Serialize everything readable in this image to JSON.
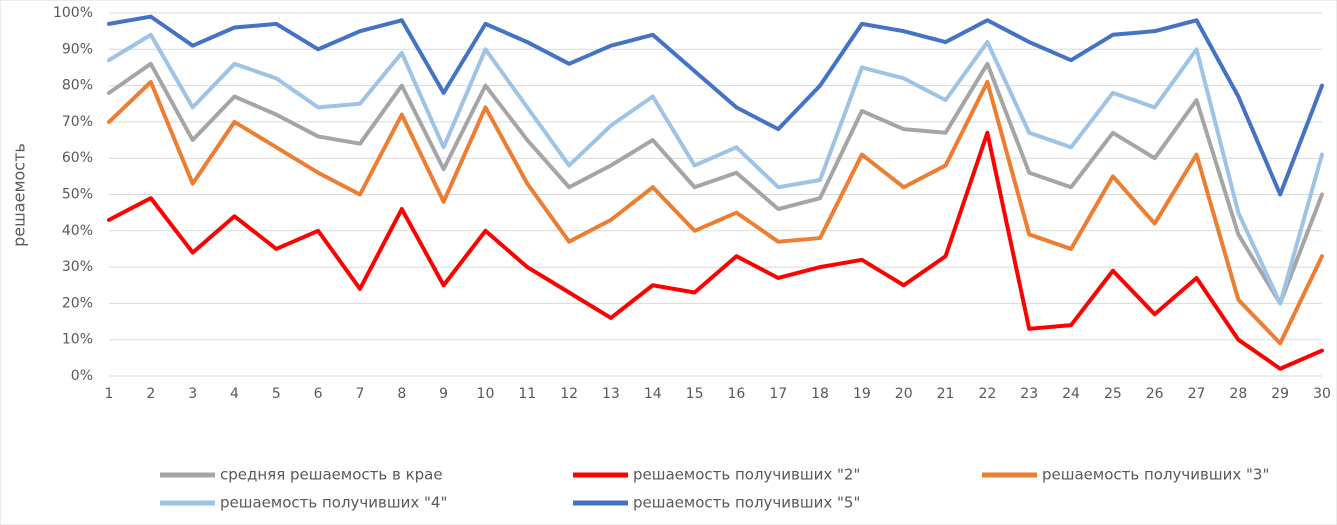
{
  "chart_data": {
    "type": "line",
    "y_label": "решаемость",
    "categories": [
      "1",
      "2",
      "3",
      "4",
      "5",
      "6",
      "7",
      "8",
      "9",
      "10",
      "11",
      "12",
      "13",
      "14",
      "15",
      "16",
      "17",
      "18",
      "19",
      "20",
      "21",
      "22",
      "23",
      "24",
      "25",
      "26",
      "27",
      "28",
      "29",
      "30"
    ],
    "ylim": [
      0,
      100
    ],
    "yticks": [
      {
        "value": 0,
        "label": "0%"
      },
      {
        "value": 10,
        "label": "10%"
      },
      {
        "value": 20,
        "label": "20%"
      },
      {
        "value": 30,
        "label": "30%"
      },
      {
        "value": 40,
        "label": "40%"
      },
      {
        "value": 50,
        "label": "50%"
      },
      {
        "value": 60,
        "label": "60%"
      },
      {
        "value": 70,
        "label": "70%"
      },
      {
        "value": 80,
        "label": "80%"
      },
      {
        "value": 90,
        "label": "90%"
      },
      {
        "value": 100,
        "label": "100%"
      }
    ],
    "grid": true,
    "legend": "bottom",
    "series": [
      {
        "name": "средняя решаемость в крае",
        "color": "#a5a5a5",
        "values": [
          78,
          86,
          65,
          77,
          72,
          66,
          64,
          80,
          57,
          80,
          65,
          52,
          58,
          65,
          52,
          56,
          46,
          49,
          73,
          68,
          67,
          86,
          56,
          52,
          67,
          60,
          76,
          39,
          20,
          50
        ]
      },
      {
        "name": "решаемость получивших \"2\"",
        "color": "#ff0000",
        "values": [
          43,
          49,
          34,
          44,
          35,
          40,
          24,
          46,
          25,
          40,
          30,
          23,
          16,
          25,
          23,
          33,
          27,
          30,
          32,
          25,
          33,
          67,
          13,
          14,
          29,
          17,
          27,
          10,
          2,
          7
        ]
      },
      {
        "name": "решаемость получивших \"3\"",
        "color": "#ed7d31",
        "values": [
          70,
          81,
          53,
          70,
          63,
          56,
          50,
          72,
          48,
          74,
          53,
          37,
          43,
          52,
          40,
          45,
          37,
          38,
          61,
          52,
          58,
          81,
          39,
          35,
          55,
          42,
          61,
          21,
          9,
          33
        ]
      },
      {
        "name": "решаемость получивших \"4\"",
        "color": "#9dc3e6",
        "values": [
          87,
          94,
          74,
          86,
          82,
          74,
          75,
          89,
          63,
          90,
          74,
          58,
          69,
          77,
          58,
          63,
          52,
          54,
          85,
          82,
          76,
          92,
          67,
          63,
          78,
          74,
          90,
          45,
          20,
          61
        ]
      },
      {
        "name": "решаемость получивших \"5\"",
        "color": "#4472c4",
        "values": [
          97,
          99,
          91,
          96,
          97,
          90,
          95,
          98,
          78,
          97,
          92,
          86,
          91,
          94,
          84,
          74,
          68,
          80,
          97,
          95,
          92,
          98,
          92,
          87,
          94,
          95,
          98,
          77,
          50,
          80
        ]
      }
    ]
  }
}
